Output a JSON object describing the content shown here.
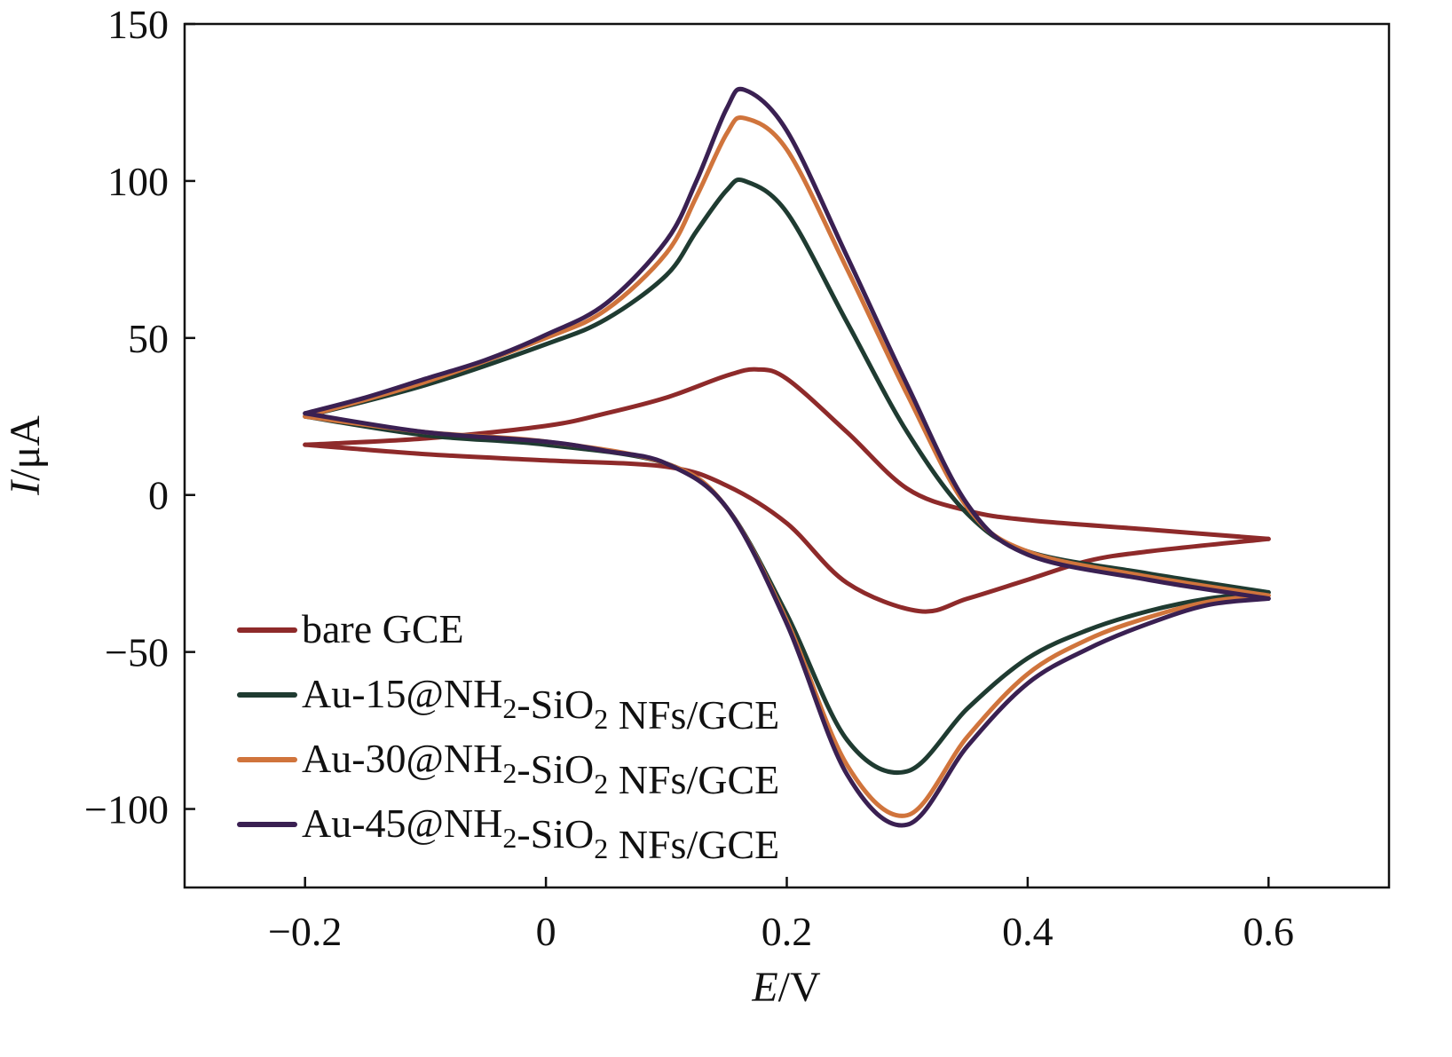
{
  "chart_data": {
    "type": "line",
    "title": "",
    "xlabel": {
      "symbol": "E",
      "unit": "/V"
    },
    "ylabel": {
      "symbol": "I",
      "unit": "/μA"
    },
    "xlim": [
      -0.3,
      0.7
    ],
    "ylim": [
      -125,
      150
    ],
    "xticks": [
      -0.2,
      0,
      0.2,
      0.4,
      0.6
    ],
    "xtick_labels": [
      "−0.2",
      "0",
      "0.2",
      "0.4",
      "0.6"
    ],
    "yticks": [
      -100,
      -50,
      0,
      50,
      100,
      150
    ],
    "ytick_labels": [
      "−100",
      "−50",
      "0",
      "50",
      "100",
      "150"
    ],
    "grid": false,
    "legend_placement": "bottom-left",
    "series": [
      {
        "name": "bare GCE",
        "color": "#8e2a2a",
        "forward": [
          [
            -0.2,
            16
          ],
          [
            -0.1,
            18
          ],
          [
            0,
            22
          ],
          [
            0.05,
            26
          ],
          [
            0.1,
            31
          ],
          [
            0.15,
            38
          ],
          [
            0.175,
            40
          ],
          [
            0.2,
            37
          ],
          [
            0.25,
            20
          ],
          [
            0.3,
            2
          ],
          [
            0.35,
            -5
          ],
          [
            0.4,
            -8
          ],
          [
            0.5,
            -11
          ],
          [
            0.6,
            -14
          ]
        ],
        "reverse": [
          [
            0.6,
            -14
          ],
          [
            0.5,
            -18
          ],
          [
            0.45,
            -21
          ],
          [
            0.4,
            -27
          ],
          [
            0.35,
            -33
          ],
          [
            0.31,
            -37
          ],
          [
            0.25,
            -28
          ],
          [
            0.2,
            -9
          ],
          [
            0.15,
            3
          ],
          [
            0.1,
            9
          ],
          [
            0,
            11
          ],
          [
            -0.1,
            13
          ],
          [
            -0.2,
            16
          ]
        ]
      },
      {
        "name": "Au-15@NH2-SiO2 NFs/GCE",
        "color": "#1f3b31",
        "forward": [
          [
            -0.2,
            25
          ],
          [
            -0.1,
            35
          ],
          [
            0,
            48
          ],
          [
            0.05,
            56
          ],
          [
            0.1,
            70
          ],
          [
            0.125,
            84
          ],
          [
            0.15,
            97
          ],
          [
            0.165,
            100
          ],
          [
            0.2,
            90
          ],
          [
            0.25,
            55
          ],
          [
            0.3,
            20
          ],
          [
            0.35,
            -6
          ],
          [
            0.4,
            -18
          ],
          [
            0.5,
            -25
          ],
          [
            0.6,
            -31
          ]
        ],
        "reverse": [
          [
            0.6,
            -31
          ],
          [
            0.55,
            -33
          ],
          [
            0.5,
            -37
          ],
          [
            0.45,
            -43
          ],
          [
            0.4,
            -52
          ],
          [
            0.35,
            -68
          ],
          [
            0.3,
            -88
          ],
          [
            0.25,
            -78
          ],
          [
            0.2,
            -38
          ],
          [
            0.15,
            -4
          ],
          [
            0.1,
            10
          ],
          [
            0,
            16
          ],
          [
            -0.1,
            19
          ],
          [
            -0.2,
            25
          ]
        ]
      },
      {
        "name": "Au-30@NH2-SiO2 NFs/GCE",
        "color": "#d0743c",
        "forward": [
          [
            -0.2,
            25
          ],
          [
            -0.1,
            36
          ],
          [
            0,
            50
          ],
          [
            0.05,
            59
          ],
          [
            0.1,
            77
          ],
          [
            0.125,
            95
          ],
          [
            0.15,
            115
          ],
          [
            0.165,
            120
          ],
          [
            0.2,
            110
          ],
          [
            0.25,
            72
          ],
          [
            0.3,
            32
          ],
          [
            0.35,
            -4
          ],
          [
            0.4,
            -18
          ],
          [
            0.5,
            -26
          ],
          [
            0.6,
            -32
          ]
        ],
        "reverse": [
          [
            0.6,
            -32
          ],
          [
            0.55,
            -34
          ],
          [
            0.5,
            -39
          ],
          [
            0.45,
            -46
          ],
          [
            0.4,
            -57
          ],
          [
            0.35,
            -77
          ],
          [
            0.3,
            -102
          ],
          [
            0.25,
            -86
          ],
          [
            0.2,
            -40
          ],
          [
            0.15,
            -4
          ],
          [
            0.1,
            10
          ],
          [
            0,
            17
          ],
          [
            -0.1,
            20
          ],
          [
            -0.2,
            25
          ]
        ]
      },
      {
        "name": "Au-45@NH2-SiO2 NFs/GCE",
        "color": "#3a2052",
        "forward": [
          [
            -0.2,
            26
          ],
          [
            -0.15,
            31
          ],
          [
            -0.1,
            37
          ],
          [
            -0.05,
            43
          ],
          [
            0,
            51
          ],
          [
            0.05,
            61
          ],
          [
            0.1,
            81
          ],
          [
            0.125,
            100
          ],
          [
            0.15,
            123
          ],
          [
            0.165,
            129
          ],
          [
            0.2,
            116
          ],
          [
            0.25,
            76
          ],
          [
            0.3,
            35
          ],
          [
            0.35,
            -3
          ],
          [
            0.4,
            -19
          ],
          [
            0.5,
            -27
          ],
          [
            0.6,
            -33
          ]
        ],
        "reverse": [
          [
            0.6,
            -33
          ],
          [
            0.55,
            -35
          ],
          [
            0.5,
            -41
          ],
          [
            0.45,
            -49
          ],
          [
            0.4,
            -60
          ],
          [
            0.35,
            -80
          ],
          [
            0.3,
            -105
          ],
          [
            0.25,
            -89
          ],
          [
            0.2,
            -41
          ],
          [
            0.15,
            -4
          ],
          [
            0.1,
            10
          ],
          [
            0.05,
            14
          ],
          [
            0,
            17
          ],
          [
            -0.1,
            20
          ],
          [
            -0.2,
            26
          ]
        ]
      }
    ]
  }
}
